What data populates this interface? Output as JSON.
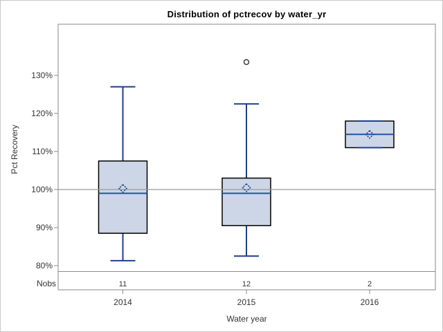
{
  "figure": {
    "title": "Distribution of pctrecov by water_yr",
    "y_axis_label": "Pct Recovery",
    "x_axis_label": "Water year",
    "nobs_row_label": "Nobs"
  },
  "chart_data": {
    "type": "boxplot",
    "title": "Distribution of pctrecov by water_yr",
    "xlabel": "Water year",
    "ylabel": "Pct Recovery",
    "categories": [
      "2014",
      "2015",
      "2016"
    ],
    "nobs": [
      "11",
      "12",
      "2"
    ],
    "y_ticks": [
      80,
      90,
      100,
      110,
      120,
      130
    ],
    "y_tick_suffix": "%",
    "ylim": [
      74,
      143
    ],
    "reference_line": 100,
    "grid": "off",
    "series": [
      {
        "category": "2014",
        "nobs": 11,
        "whisker_low": 81.3,
        "q1": 88.5,
        "median": 99.0,
        "mean": 100.3,
        "q3": 107.5,
        "whisker_high": 127.0,
        "outliers": []
      },
      {
        "category": "2015",
        "nobs": 12,
        "whisker_low": 82.5,
        "q1": 90.5,
        "median": 99.0,
        "mean": 100.5,
        "q3": 103.0,
        "whisker_high": 122.5,
        "outliers": [
          133.5
        ]
      },
      {
        "category": "2016",
        "nobs": 2,
        "whisker_low": 111.0,
        "q1": 111.0,
        "median": 114.5,
        "mean": 114.5,
        "q3": 118.0,
        "whisker_high": 118.0,
        "outliers": []
      }
    ]
  },
  "colors": {
    "box_fill": "#ccd6e6",
    "box_border": "#000000",
    "whisker": "#1f3d8c",
    "median": "#2351a5",
    "mean_marker": "#1f3d8c",
    "outlier": "#333333",
    "reference_line": "#9b9b9b",
    "plot_border": "#8a8a8a",
    "tick_text": "#333333",
    "figure_border": "#c8c8c8"
  }
}
